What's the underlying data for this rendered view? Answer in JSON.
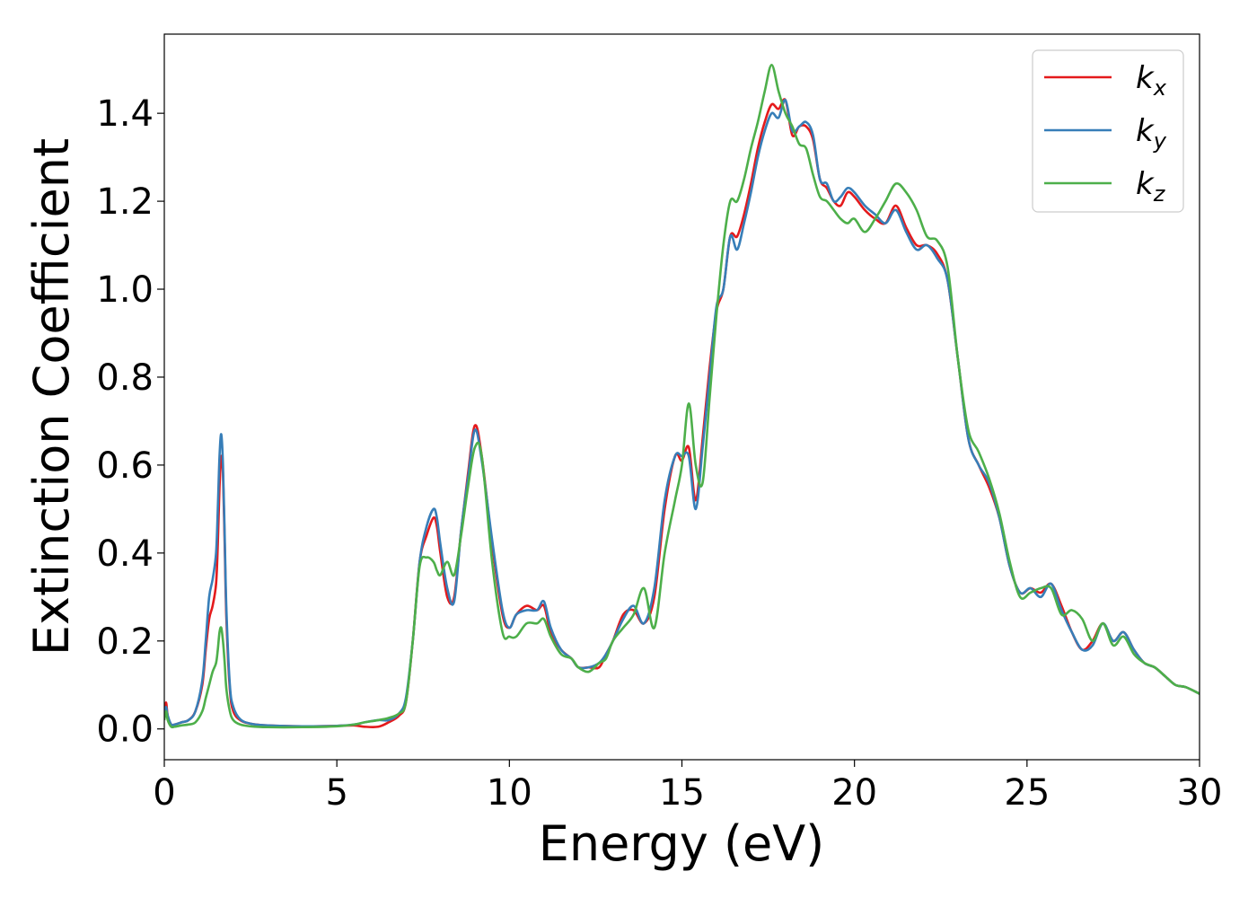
{
  "chart_data": {
    "type": "line",
    "title": "",
    "xlabel": "Energy (eV)",
    "ylabel": "Extinction Coefficient",
    "xlim": [
      0,
      30
    ],
    "ylim": [
      -0.07,
      1.58
    ],
    "xticks": [
      0,
      5,
      10,
      15,
      20,
      25,
      30
    ],
    "xtick_labels": [
      "0",
      "5",
      "10",
      "15",
      "20",
      "25",
      "30"
    ],
    "yticks": [
      0.0,
      0.2,
      0.4,
      0.6,
      0.8,
      1.0,
      1.2,
      1.4
    ],
    "ytick_labels": [
      "0.0",
      "0.2",
      "0.4",
      "0.6",
      "0.8",
      "1.0",
      "1.2",
      "1.4"
    ],
    "grid": false,
    "legend_position": "top-right",
    "series": [
      {
        "name": "kx",
        "label_main": "k",
        "label_sub": "x",
        "color": "#e41a1c",
        "x": [
          0,
          0.05,
          0.1,
          0.2,
          0.3,
          0.5,
          0.7,
          0.9,
          1.1,
          1.2,
          1.3,
          1.4,
          1.5,
          1.55,
          1.6,
          1.65,
          1.7,
          1.75,
          1.8,
          1.9,
          2.0,
          2.2,
          2.5,
          3,
          4,
          5,
          5.5,
          5.8,
          6.2,
          6.5,
          6.8,
          7.0,
          7.2,
          7.4,
          7.6,
          7.8,
          7.9,
          8.0,
          8.2,
          8.4,
          8.6,
          8.8,
          9.0,
          9.2,
          9.5,
          9.8,
          10.0,
          10.2,
          10.5,
          10.8,
          11.0,
          11.2,
          11.5,
          11.8,
          12.0,
          12.3,
          12.6,
          12.8,
          13.0,
          13.3,
          13.6,
          13.9,
          14.2,
          14.5,
          14.8,
          15.0,
          15.2,
          15.4,
          15.6,
          15.8,
          16.0,
          16.2,
          16.4,
          16.6,
          16.8,
          17.0,
          17.2,
          17.4,
          17.6,
          17.8,
          18.0,
          18.2,
          18.4,
          18.6,
          18.8,
          19.0,
          19.2,
          19.4,
          19.6,
          19.8,
          20.0,
          20.3,
          20.6,
          20.9,
          21.2,
          21.5,
          21.8,
          22.1,
          22.4,
          22.7,
          23.0,
          23.3,
          23.6,
          23.9,
          24.2,
          24.5,
          24.8,
          25.1,
          25.4,
          25.7,
          26.0,
          26.3,
          26.6,
          26.9,
          27.2,
          27.5,
          27.8,
          28.1,
          28.4,
          28.7,
          29.0,
          29.3,
          29.6,
          30.0
        ],
        "y": [
          0.03,
          0.06,
          0.03,
          0.01,
          0.01,
          0.015,
          0.02,
          0.04,
          0.1,
          0.18,
          0.25,
          0.28,
          0.33,
          0.42,
          0.55,
          0.62,
          0.58,
          0.42,
          0.25,
          0.09,
          0.04,
          0.02,
          0.012,
          0.008,
          0.006,
          0.007,
          0.008,
          0.005,
          0.005,
          0.015,
          0.03,
          0.06,
          0.2,
          0.38,
          0.44,
          0.48,
          0.46,
          0.4,
          0.3,
          0.3,
          0.45,
          0.58,
          0.69,
          0.62,
          0.42,
          0.26,
          0.23,
          0.26,
          0.28,
          0.27,
          0.28,
          0.22,
          0.18,
          0.16,
          0.14,
          0.14,
          0.14,
          0.17,
          0.2,
          0.26,
          0.27,
          0.24,
          0.3,
          0.5,
          0.62,
          0.61,
          0.64,
          0.52,
          0.66,
          0.82,
          0.95,
          1.0,
          1.12,
          1.12,
          1.17,
          1.24,
          1.32,
          1.38,
          1.42,
          1.41,
          1.43,
          1.35,
          1.37,
          1.37,
          1.34,
          1.25,
          1.23,
          1.2,
          1.19,
          1.22,
          1.21,
          1.18,
          1.16,
          1.15,
          1.19,
          1.14,
          1.1,
          1.1,
          1.08,
          1.02,
          0.84,
          0.66,
          0.6,
          0.55,
          0.48,
          0.37,
          0.31,
          0.32,
          0.31,
          0.33,
          0.28,
          0.22,
          0.18,
          0.2,
          0.24,
          0.2,
          0.22,
          0.18,
          0.15,
          0.14,
          0.12,
          0.1,
          0.095,
          0.08
        ]
      },
      {
        "name": "ky",
        "label_main": "k",
        "label_sub": "y",
        "color": "#377eb8",
        "x": [
          0,
          0.05,
          0.1,
          0.2,
          0.3,
          0.5,
          0.7,
          0.9,
          1.1,
          1.2,
          1.3,
          1.4,
          1.5,
          1.55,
          1.6,
          1.65,
          1.7,
          1.75,
          1.8,
          1.9,
          2.0,
          2.2,
          2.5,
          3,
          4,
          5,
          5.5,
          5.8,
          6.2,
          6.5,
          6.8,
          7.0,
          7.2,
          7.4,
          7.6,
          7.8,
          7.9,
          8.0,
          8.2,
          8.4,
          8.6,
          8.8,
          9.0,
          9.2,
          9.5,
          9.8,
          10.0,
          10.2,
          10.5,
          10.8,
          11.0,
          11.2,
          11.5,
          11.8,
          12.0,
          12.3,
          12.6,
          12.8,
          13.0,
          13.3,
          13.6,
          13.9,
          14.2,
          14.5,
          14.8,
          15.0,
          15.2,
          15.4,
          15.6,
          15.8,
          16.0,
          16.2,
          16.4,
          16.6,
          16.8,
          17.0,
          17.2,
          17.4,
          17.6,
          17.8,
          18.0,
          18.2,
          18.4,
          18.6,
          18.8,
          19.0,
          19.2,
          19.4,
          19.6,
          19.8,
          20.0,
          20.3,
          20.6,
          20.9,
          21.2,
          21.5,
          21.8,
          22.1,
          22.4,
          22.7,
          23.0,
          23.3,
          23.6,
          23.9,
          24.2,
          24.5,
          24.8,
          25.1,
          25.4,
          25.7,
          26.0,
          26.3,
          26.6,
          26.9,
          27.2,
          27.5,
          27.8,
          28.1,
          28.4,
          28.7,
          29.0,
          29.3,
          29.6,
          30.0
        ],
        "y": [
          0.03,
          0.05,
          0.03,
          0.01,
          0.01,
          0.015,
          0.02,
          0.04,
          0.11,
          0.2,
          0.3,
          0.34,
          0.4,
          0.5,
          0.62,
          0.67,
          0.6,
          0.44,
          0.27,
          0.1,
          0.05,
          0.022,
          0.012,
          0.008,
          0.006,
          0.007,
          0.01,
          0.015,
          0.02,
          0.02,
          0.035,
          0.07,
          0.2,
          0.38,
          0.46,
          0.5,
          0.48,
          0.42,
          0.32,
          0.29,
          0.45,
          0.57,
          0.68,
          0.61,
          0.43,
          0.27,
          0.23,
          0.26,
          0.27,
          0.27,
          0.29,
          0.23,
          0.18,
          0.16,
          0.14,
          0.14,
          0.15,
          0.17,
          0.2,
          0.25,
          0.28,
          0.24,
          0.32,
          0.52,
          0.62,
          0.62,
          0.62,
          0.5,
          0.64,
          0.8,
          0.96,
          1.0,
          1.12,
          1.09,
          1.15,
          1.22,
          1.3,
          1.36,
          1.4,
          1.39,
          1.43,
          1.36,
          1.37,
          1.38,
          1.35,
          1.25,
          1.24,
          1.2,
          1.21,
          1.23,
          1.22,
          1.19,
          1.17,
          1.15,
          1.18,
          1.13,
          1.09,
          1.1,
          1.07,
          1.02,
          0.84,
          0.66,
          0.6,
          0.56,
          0.48,
          0.37,
          0.31,
          0.32,
          0.3,
          0.33,
          0.27,
          0.22,
          0.18,
          0.19,
          0.24,
          0.2,
          0.22,
          0.18,
          0.15,
          0.14,
          0.12,
          0.1,
          0.095,
          0.08
        ]
      },
      {
        "name": "kz",
        "label_main": "k",
        "label_sub": "z",
        "color": "#4daf4a",
        "x": [
          0,
          0.05,
          0.1,
          0.2,
          0.3,
          0.5,
          0.7,
          0.9,
          1.1,
          1.2,
          1.3,
          1.4,
          1.5,
          1.55,
          1.6,
          1.65,
          1.7,
          1.75,
          1.8,
          1.9,
          2.0,
          2.2,
          2.5,
          3,
          4,
          5,
          5.5,
          5.8,
          6.2,
          6.5,
          6.8,
          7.0,
          7.2,
          7.4,
          7.6,
          7.8,
          7.9,
          8.0,
          8.2,
          8.4,
          8.6,
          8.8,
          9.0,
          9.2,
          9.5,
          9.8,
          10.0,
          10.2,
          10.5,
          10.8,
          11.0,
          11.2,
          11.5,
          11.8,
          12.0,
          12.3,
          12.6,
          12.8,
          13.0,
          13.3,
          13.6,
          13.9,
          14.2,
          14.5,
          14.8,
          15.0,
          15.2,
          15.4,
          15.6,
          15.8,
          16.0,
          16.2,
          16.4,
          16.6,
          16.8,
          17.0,
          17.2,
          17.4,
          17.6,
          17.8,
          18.0,
          18.2,
          18.4,
          18.6,
          18.8,
          19.0,
          19.2,
          19.4,
          19.6,
          19.8,
          20.0,
          20.3,
          20.6,
          20.9,
          21.2,
          21.5,
          21.8,
          22.1,
          22.4,
          22.7,
          23.0,
          23.3,
          23.6,
          23.9,
          24.2,
          24.5,
          24.8,
          25.1,
          25.4,
          25.7,
          26.0,
          26.3,
          26.6,
          26.9,
          27.2,
          27.5,
          27.8,
          28.1,
          28.4,
          28.7,
          29.0,
          29.3,
          29.6,
          30.0
        ],
        "y": [
          0.02,
          0.04,
          0.02,
          0.005,
          0.005,
          0.008,
          0.01,
          0.015,
          0.04,
          0.07,
          0.1,
          0.13,
          0.15,
          0.18,
          0.22,
          0.23,
          0.2,
          0.15,
          0.09,
          0.04,
          0.02,
          0.01,
          0.006,
          0.004,
          0.004,
          0.006,
          0.01,
          0.015,
          0.02,
          0.025,
          0.035,
          0.06,
          0.2,
          0.37,
          0.39,
          0.38,
          0.36,
          0.35,
          0.38,
          0.35,
          0.44,
          0.55,
          0.64,
          0.62,
          0.38,
          0.22,
          0.21,
          0.21,
          0.24,
          0.24,
          0.25,
          0.21,
          0.17,
          0.16,
          0.14,
          0.13,
          0.15,
          0.16,
          0.2,
          0.23,
          0.26,
          0.32,
          0.23,
          0.4,
          0.52,
          0.6,
          0.74,
          0.6,
          0.56,
          0.75,
          0.94,
          1.1,
          1.2,
          1.2,
          1.25,
          1.32,
          1.38,
          1.45,
          1.51,
          1.45,
          1.4,
          1.37,
          1.33,
          1.32,
          1.26,
          1.21,
          1.2,
          1.18,
          1.16,
          1.15,
          1.16,
          1.13,
          1.16,
          1.2,
          1.24,
          1.22,
          1.18,
          1.12,
          1.11,
          1.05,
          0.84,
          0.68,
          0.63,
          0.57,
          0.49,
          0.38,
          0.3,
          0.31,
          0.32,
          0.32,
          0.26,
          0.27,
          0.25,
          0.2,
          0.24,
          0.19,
          0.21,
          0.17,
          0.15,
          0.14,
          0.12,
          0.1,
          0.095,
          0.08
        ]
      }
    ]
  }
}
